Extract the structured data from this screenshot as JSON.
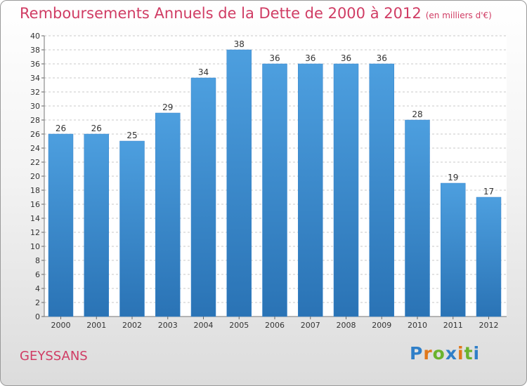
{
  "chart_data": {
    "type": "bar",
    "title": "Remboursements Annuels de la Dette de 2000 à 2012",
    "subtitle": "(en milliers d'€)",
    "categories": [
      "2000",
      "2001",
      "2002",
      "2003",
      "2004",
      "2005",
      "2006",
      "2007",
      "2008",
      "2009",
      "2010",
      "2011",
      "2012"
    ],
    "values": [
      26,
      26,
      25,
      29,
      34,
      38,
      36,
      36,
      36,
      36,
      28,
      19,
      17
    ],
    "ylim": [
      0,
      40
    ],
    "ytick_step": 2,
    "grid": true,
    "xlabel": "",
    "ylabel": "",
    "bar_color": "#4d9fdf",
    "bar_color_dark": "#2a73b5"
  },
  "footer": {
    "town": "GEYSSANS",
    "brand": {
      "letters": [
        "P",
        "r",
        "o",
        "x",
        "i",
        "t",
        "i"
      ],
      "colors": [
        "#2f7fc8",
        "#e0781b",
        "#6ab32d",
        "#2f7fc8",
        "#e0781b",
        "#6ab32d",
        "#2f7fc8"
      ]
    }
  },
  "colors": {
    "accent": "#d03c64",
    "grid": "#c8c8c8"
  }
}
